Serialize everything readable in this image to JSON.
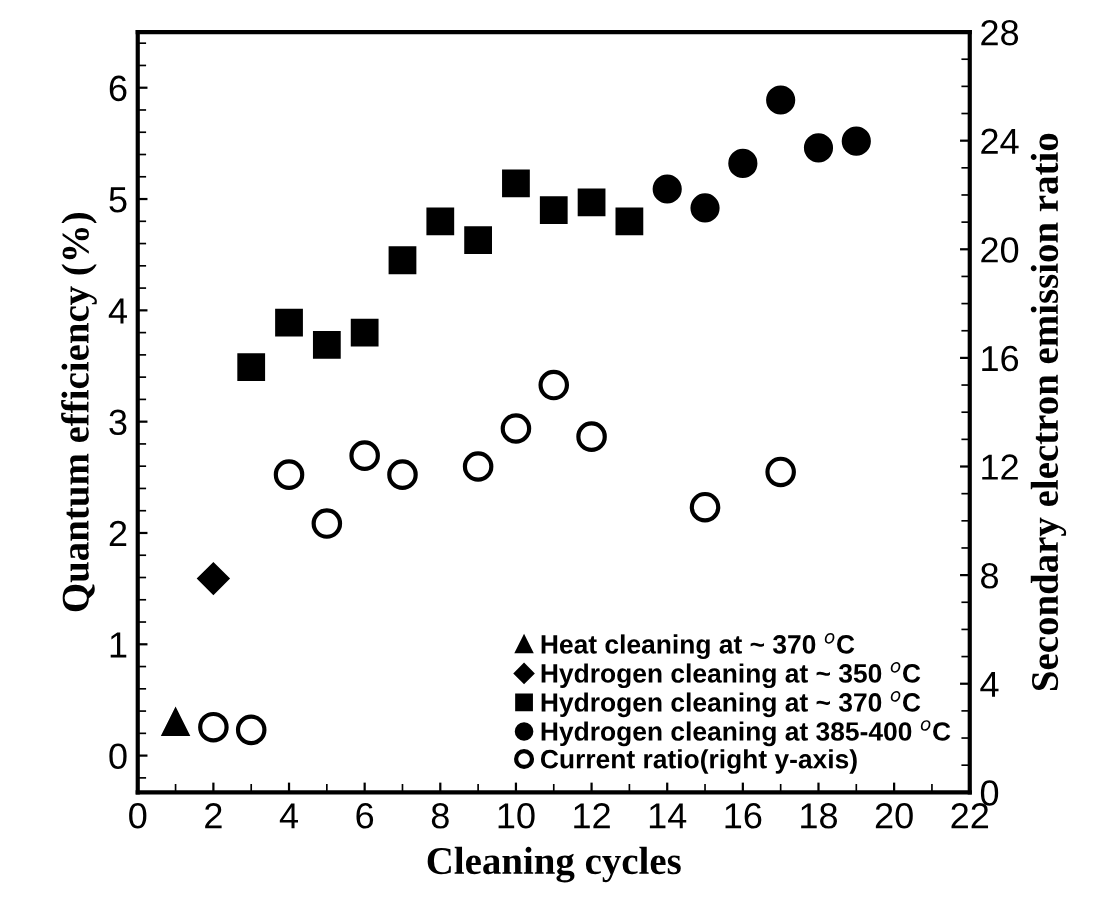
{
  "chart_data": {
    "type": "scatter",
    "xlabel": "Cleaning cycles",
    "ylabel": "Quantum efficiency (%)",
    "y2label": "Secondary electron emission ratio",
    "xlim": [
      0,
      22
    ],
    "xticks": [
      0,
      2,
      4,
      6,
      8,
      10,
      12,
      14,
      16,
      18,
      20,
      22
    ],
    "ylim": [
      -0.33,
      6.5
    ],
    "yticks": [
      0,
      1,
      2,
      3,
      4,
      5,
      6
    ],
    "y2lim": [
      0,
      28
    ],
    "y2ticks": [
      0,
      4,
      8,
      12,
      16,
      20,
      24,
      28
    ],
    "legend": "bottom right",
    "grid": false,
    "series": [
      {
        "name": "Heat cleaning at ~ 370 $^{o}$C",
        "color": "#000000",
        "marker": "triangle",
        "x": [
          1
        ],
        "values": [
          0.3
        ]
      },
      {
        "name": "Hydrogen cleaning at ~ 350 $^{o}$C",
        "color": "#000000",
        "marker": "diamond",
        "x": [
          2
        ],
        "values": [
          1.59
        ]
      },
      {
        "name": "Hydrogen cleaning at ~ 370 $^{o}$C",
        "color": "#000000",
        "marker": "square",
        "x": [
          3,
          4,
          5,
          6,
          7,
          8,
          9,
          10,
          11,
          12,
          13
        ],
        "values": [
          3.49,
          3.89,
          3.69,
          3.8,
          4.45,
          4.8,
          4.63,
          5.14,
          4.9,
          4.97,
          4.8
        ]
      },
      {
        "name": "Hydrogen cleaning at 385-400 $^{o}$C",
        "color": "#000000",
        "marker": "circle",
        "x": [
          14,
          15,
          16,
          17,
          18,
          19
        ],
        "values": [
          5.09,
          4.92,
          5.32,
          5.89,
          5.46,
          5.52
        ]
      },
      {
        "name": "Current ratio(right y-axis)",
        "color": "#000000",
        "marker": "circle",
        "axis": "y2",
        "x": [
          2,
          3,
          4,
          5,
          6,
          7,
          9,
          10,
          11,
          12,
          15,
          17
        ],
        "values": [
          2.4,
          2.3,
          11.7,
          9.9,
          12.4,
          11.7,
          12.0,
          13.4,
          15.0,
          13.1,
          10.5,
          11.8
        ]
      }
    ]
  }
}
